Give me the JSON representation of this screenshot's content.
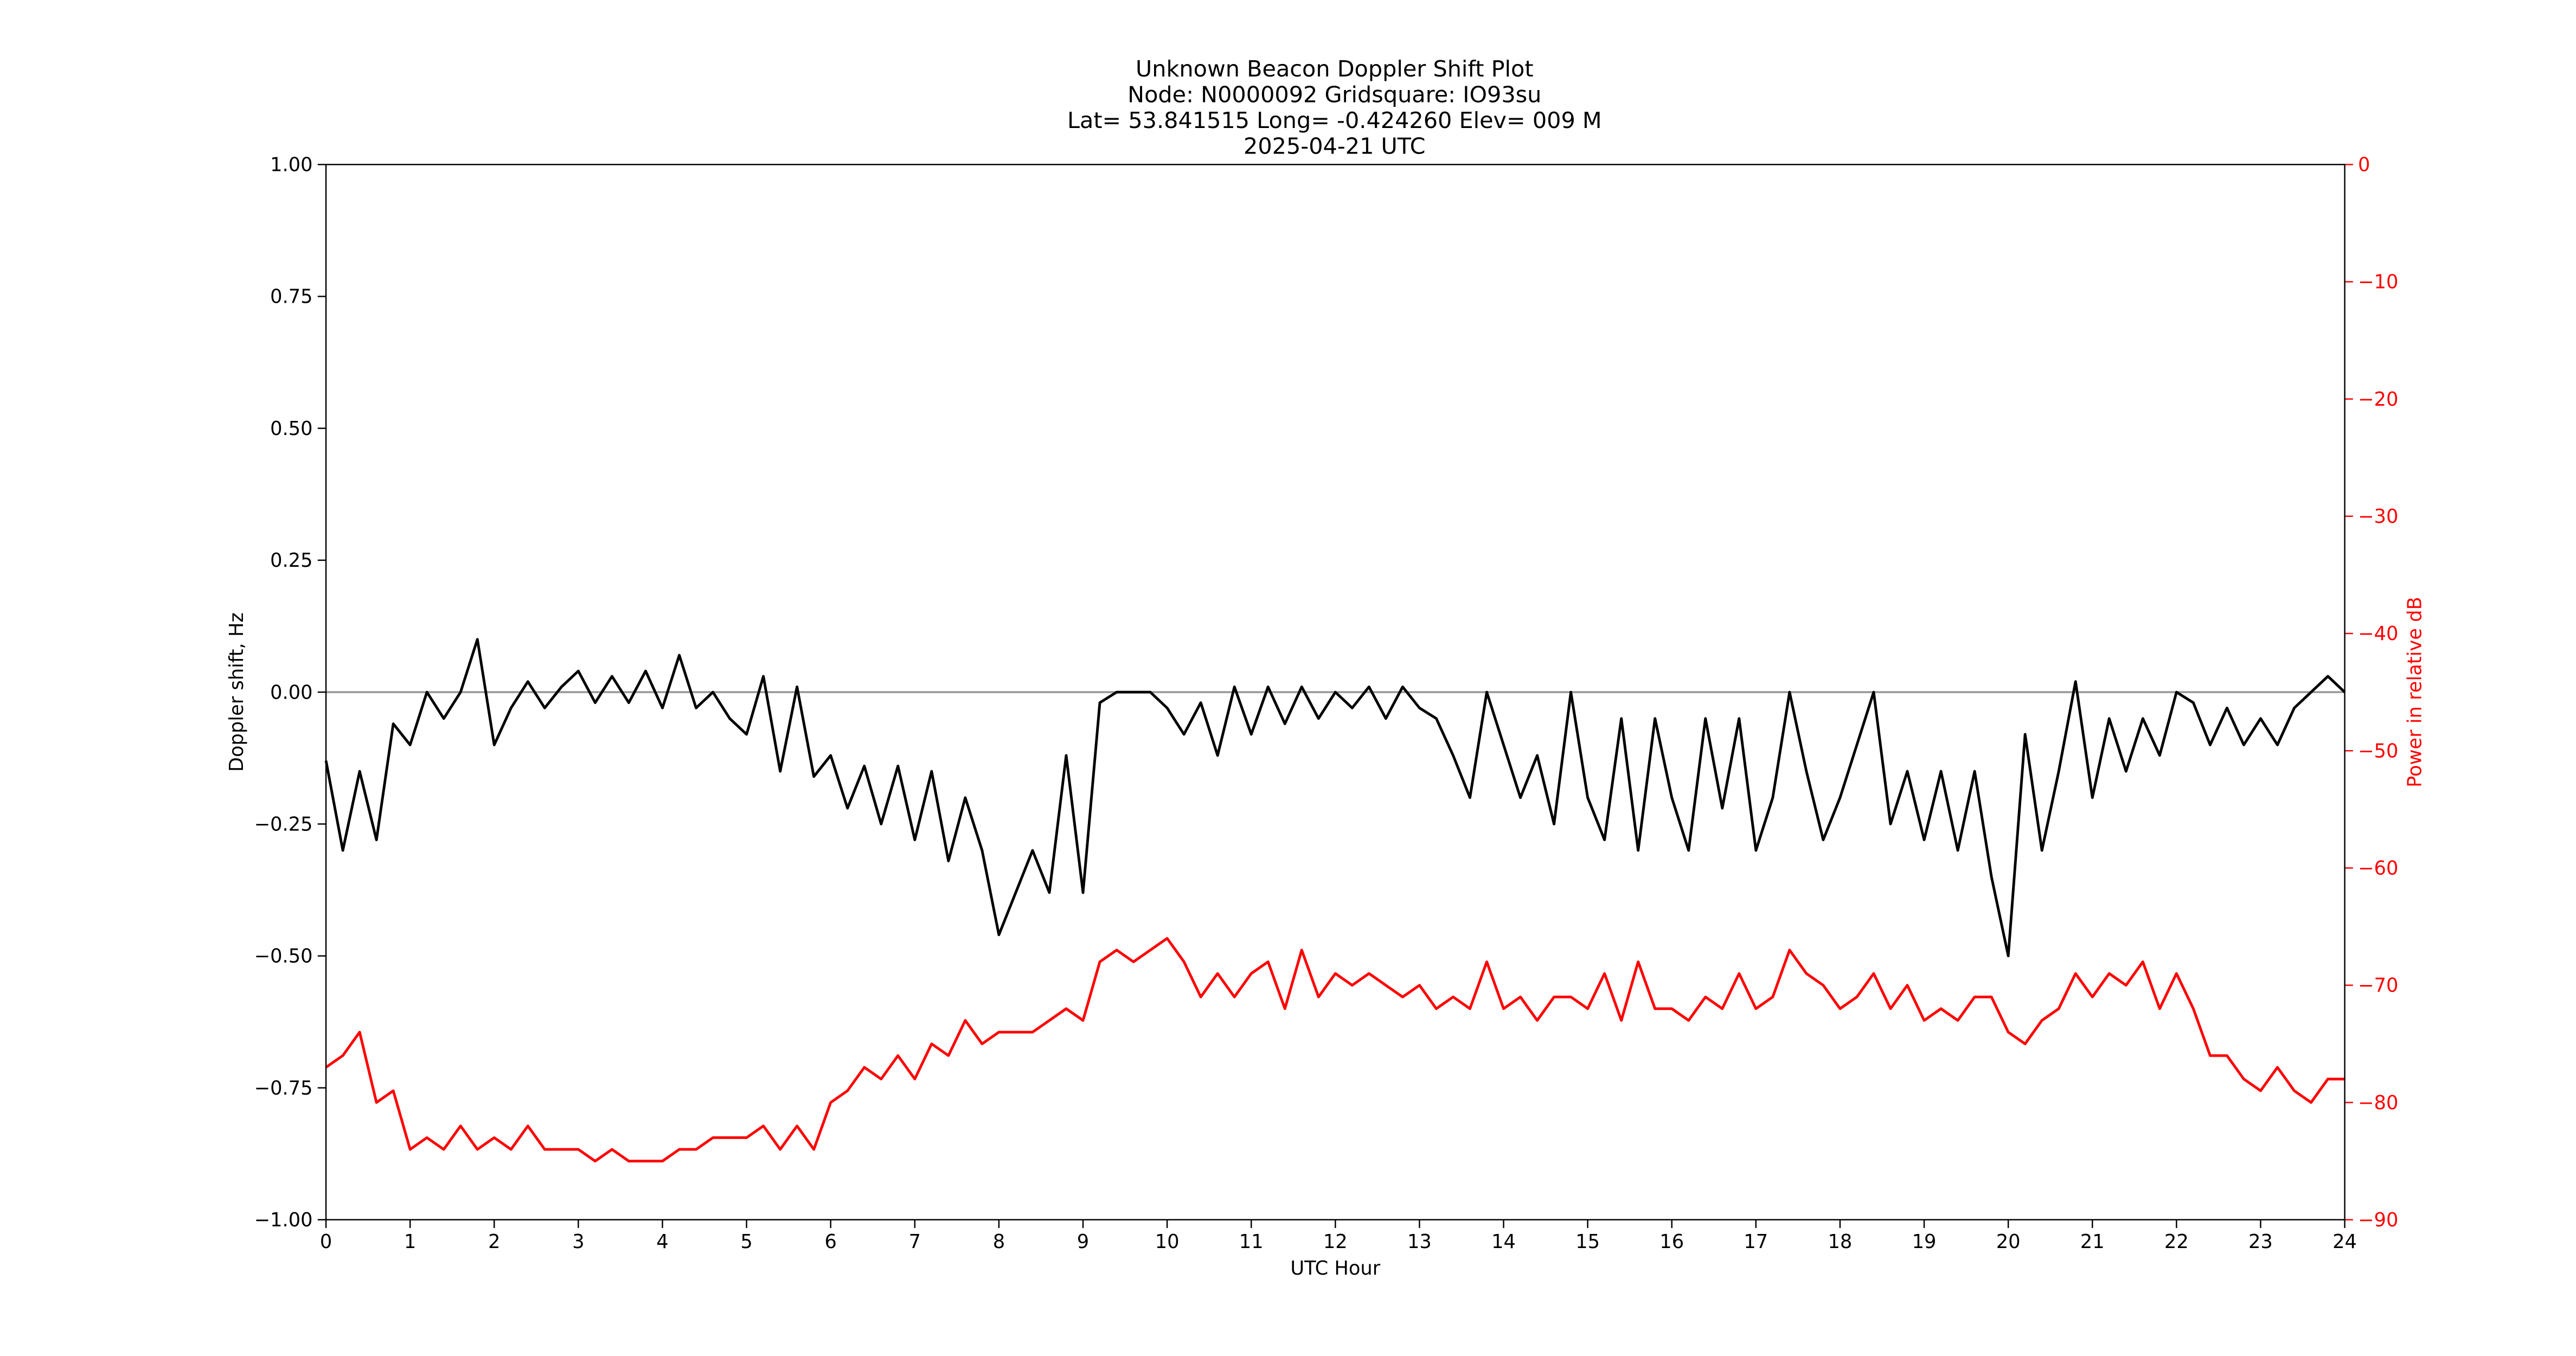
{
  "chart_data": {
    "type": "line",
    "title": [
      "Unknown Beacon Doppler Shift Plot",
      "Node:  N0000092     Gridsquare:  IO93su",
      "Lat= 53.841515    Long= -0.424260    Elev= 009 M",
      "2025-04-21  UTC"
    ],
    "xlabel": "UTC Hour",
    "ylabel": "Doppler shift, Hz",
    "y2label": "Power in relative dB",
    "x": [
      0,
      0.2,
      0.4,
      0.6,
      0.8,
      1,
      1.2,
      1.4,
      1.6,
      1.8,
      2,
      2.2,
      2.4,
      2.6,
      2.8,
      3,
      3.2,
      3.4,
      3.6,
      3.8,
      4,
      4.2,
      4.4,
      4.6,
      4.8,
      5,
      5.2,
      5.4,
      5.6,
      5.8,
      6,
      6.2,
      6.4,
      6.6,
      6.8,
      7,
      7.2,
      7.4,
      7.6,
      7.8,
      8,
      8.2,
      8.4,
      8.6,
      8.8,
      9,
      9.2,
      9.4,
      9.6,
      9.8,
      10,
      10.2,
      10.4,
      10.6,
      10.8,
      11,
      11.2,
      11.4,
      11.6,
      11.8,
      12,
      12.2,
      12.4,
      12.6,
      12.8,
      13,
      13.2,
      13.4,
      13.6,
      13.8,
      14,
      14.2,
      14.4,
      14.6,
      14.8,
      15,
      15.2,
      15.4,
      15.6,
      15.8,
      16,
      16.2,
      16.4,
      16.6,
      16.8,
      17,
      17.2,
      17.4,
      17.6,
      17.8,
      18,
      18.2,
      18.4,
      18.6,
      18.8,
      19,
      19.2,
      19.4,
      19.6,
      19.8,
      20,
      20.2,
      20.4,
      20.6,
      20.8,
      21,
      21.2,
      21.4,
      21.6,
      21.8,
      22,
      22.2,
      22.4,
      22.6,
      22.8,
      23,
      23.2,
      23.4,
      23.6,
      23.8,
      24
    ],
    "series": [
      {
        "color": "#000000",
        "axis": "y",
        "values": [
          -0.13,
          -0.3,
          -0.15,
          -0.28,
          -0.06,
          -0.1,
          0,
          -0.05,
          0,
          0.1,
          -0.1,
          -0.03,
          0.02,
          -0.03,
          0.01,
          0.04,
          -0.02,
          0.03,
          -0.02,
          0.04,
          -0.03,
          0.07,
          -0.03,
          0,
          -0.05,
          -0.08,
          0.03,
          -0.15,
          0.01,
          -0.16,
          -0.12,
          -0.22,
          -0.14,
          -0.25,
          -0.14,
          -0.28,
          -0.15,
          -0.32,
          -0.2,
          -0.3,
          -0.46,
          -0.38,
          -0.3,
          -0.38,
          -0.12,
          -0.38,
          -0.02,
          0,
          0,
          0,
          -0.03,
          -0.08,
          -0.02,
          -0.12,
          0.01,
          -0.08,
          0.01,
          -0.06,
          0.01,
          -0.05,
          0,
          -0.03,
          0.01,
          -0.05,
          0.01,
          -0.03,
          -0.05,
          -0.12,
          -0.2,
          0,
          -0.1,
          -0.2,
          -0.12,
          -0.25,
          0,
          -0.2,
          -0.28,
          -0.05,
          -0.3,
          -0.05,
          -0.2,
          -0.3,
          -0.05,
          -0.22,
          -0.05,
          -0.3,
          -0.2,
          0,
          -0.15,
          -0.28,
          -0.2,
          -0.1,
          0,
          -0.25,
          -0.15,
          -0.28,
          -0.15,
          -0.3,
          -0.15,
          -0.35,
          -0.5,
          -0.08,
          -0.3,
          -0.15,
          0.02,
          -0.2,
          -0.05,
          -0.15,
          -0.05,
          -0.12,
          0,
          -0.02,
          -0.1,
          -0.03,
          -0.1,
          -0.05,
          -0.1,
          -0.03,
          0,
          0.03,
          0
        ]
      },
      {
        "color": "#ff0000",
        "axis": "y2",
        "values": [
          -77,
          -76,
          -74,
          -80,
          -79,
          -84,
          -83,
          -84,
          -82,
          -84,
          -83,
          -84,
          -82,
          -84,
          -84,
          -84,
          -85,
          -84,
          -85,
          -85,
          -85,
          -84,
          -84,
          -83,
          -83,
          -83,
          -82,
          -84,
          -82,
          -84,
          -80,
          -79,
          -77,
          -78,
          -76,
          -78,
          -75,
          -76,
          -73,
          -75,
          -74,
          -74,
          -74,
          -73,
          -72,
          -73,
          -68,
          -67,
          -68,
          -67,
          -66,
          -68,
          -71,
          -69,
          -71,
          -69,
          -68,
          -72,
          -67,
          -71,
          -69,
          -70,
          -69,
          -70,
          -71,
          -70,
          -72,
          -71,
          -72,
          -68,
          -72,
          -71,
          -73,
          -71,
          -71,
          -72,
          -69,
          -73,
          -68,
          -72,
          -72,
          -73,
          -71,
          -72,
          -69,
          -72,
          -71,
          -67,
          -69,
          -70,
          -72,
          -71,
          -69,
          -72,
          -70,
          -73,
          -72,
          -73,
          -71,
          -71,
          -74,
          -75,
          -73,
          -72,
          -69,
          -71,
          -69,
          -70,
          -68,
          -72,
          -69,
          -72,
          -76,
          -76,
          -78,
          -79,
          -77,
          -79,
          -80,
          -78,
          -78
        ]
      }
    ],
    "xlim": [
      0,
      24
    ],
    "xticks": [
      0,
      1,
      2,
      3,
      4,
      5,
      6,
      7,
      8,
      9,
      10,
      11,
      12,
      13,
      14,
      15,
      16,
      17,
      18,
      19,
      20,
      21,
      22,
      23,
      24
    ],
    "ylim": [
      -1,
      1
    ],
    "yticks": [
      {
        "value": -1,
        "label": "−1.00"
      },
      {
        "value": -0.75,
        "label": "−0.75"
      },
      {
        "value": -0.5,
        "label": "−0.50"
      },
      {
        "value": -0.25,
        "label": "−0.25"
      },
      {
        "value": 0,
        "label": "0.00"
      },
      {
        "value": 0.25,
        "label": "0.25"
      },
      {
        "value": 0.5,
        "label": "0.50"
      },
      {
        "value": 0.75,
        "label": "0.75"
      },
      {
        "value": 1,
        "label": "1.00"
      }
    ],
    "y2lim": [
      -90,
      0
    ],
    "y2ticks": [
      {
        "value": -90,
        "label": "−90"
      },
      {
        "value": -80,
        "label": "−80"
      },
      {
        "value": -70,
        "label": "−70"
      },
      {
        "value": -60,
        "label": "−60"
      },
      {
        "value": -50,
        "label": "−50"
      },
      {
        "value": -40,
        "label": "−40"
      },
      {
        "value": -30,
        "label": "−30"
      },
      {
        "value": -20,
        "label": "−20"
      },
      {
        "value": -10,
        "label": "−10"
      },
      {
        "value": 0,
        "label": "0"
      }
    ],
    "y2color": "#ff0000",
    "hline": 0,
    "hline_color": "#999999"
  }
}
